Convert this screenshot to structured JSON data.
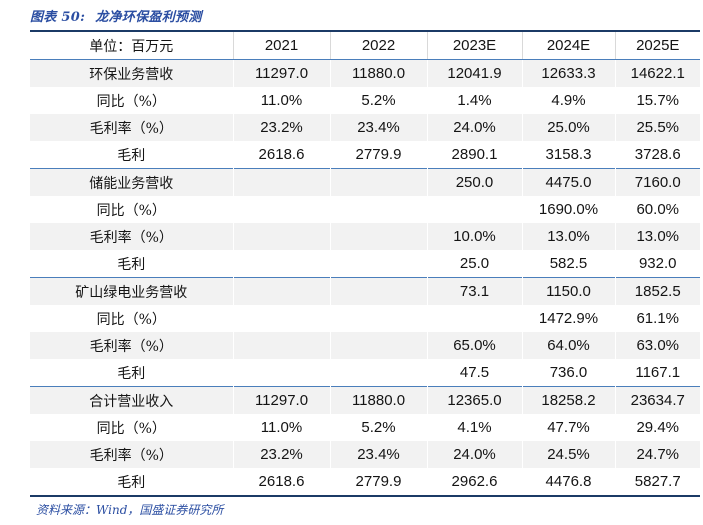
{
  "title": {
    "figure_label": "图表 50:",
    "figure_name": "龙净环保盈利预测"
  },
  "colors": {
    "accent_blue": "#2B4EA2",
    "border_dark_navy": "#1B3A66",
    "border_blue": "#4A7EBB",
    "row_shade": "#F2F2F2",
    "header_divider_gray": "#D9D9D9"
  },
  "table": {
    "unit_label": "单位：百万元",
    "columns": [
      "2021",
      "2022",
      "2023E",
      "2024E",
      "2025E"
    ],
    "rows": [
      {
        "label": "环保业务营收",
        "values": [
          "11297.0",
          "11880.0",
          "12041.9",
          "12633.3",
          "14622.1"
        ],
        "shaded": true,
        "section_start": false
      },
      {
        "label": "同比（%）",
        "values": [
          "11.0%",
          "5.2%",
          "1.4%",
          "4.9%",
          "15.7%"
        ],
        "shaded": false,
        "section_start": false
      },
      {
        "label": "毛利率（%）",
        "values": [
          "23.2%",
          "23.4%",
          "24.0%",
          "25.0%",
          "25.5%"
        ],
        "shaded": true,
        "section_start": false
      },
      {
        "label": "毛利",
        "values": [
          "2618.6",
          "2779.9",
          "2890.1",
          "3158.3",
          "3728.6"
        ],
        "shaded": false,
        "section_start": false
      },
      {
        "label": "储能业务营收",
        "values": [
          "",
          "",
          "250.0",
          "4475.0",
          "7160.0"
        ],
        "shaded": true,
        "section_start": true
      },
      {
        "label": "同比（%）",
        "values": [
          "",
          "",
          "",
          "1690.0%",
          "60.0%"
        ],
        "shaded": false,
        "section_start": false
      },
      {
        "label": "毛利率（%）",
        "values": [
          "",
          "",
          "10.0%",
          "13.0%",
          "13.0%"
        ],
        "shaded": true,
        "section_start": false
      },
      {
        "label": "毛利",
        "values": [
          "",
          "",
          "25.0",
          "582.5",
          "932.0"
        ],
        "shaded": false,
        "section_start": false
      },
      {
        "label": "矿山绿电业务营收",
        "values": [
          "",
          "",
          "73.1",
          "1150.0",
          "1852.5"
        ],
        "shaded": true,
        "section_start": true
      },
      {
        "label": "同比（%）",
        "values": [
          "",
          "",
          "",
          "1472.9%",
          "61.1%"
        ],
        "shaded": false,
        "section_start": false
      },
      {
        "label": "毛利率（%）",
        "values": [
          "",
          "",
          "65.0%",
          "64.0%",
          "63.0%"
        ],
        "shaded": true,
        "section_start": false
      },
      {
        "label": "毛利",
        "values": [
          "",
          "",
          "47.5",
          "736.0",
          "1167.1"
        ],
        "shaded": false,
        "section_start": false
      },
      {
        "label": "合计营业收入",
        "values": [
          "11297.0",
          "11880.0",
          "12365.0",
          "18258.2",
          "23634.7"
        ],
        "shaded": true,
        "section_start": true
      },
      {
        "label": "同比（%）",
        "values": [
          "11.0%",
          "5.2%",
          "4.1%",
          "47.7%",
          "29.4%"
        ],
        "shaded": false,
        "section_start": false
      },
      {
        "label": "毛利率（%）",
        "values": [
          "23.2%",
          "23.4%",
          "24.0%",
          "24.5%",
          "24.7%"
        ],
        "shaded": true,
        "section_start": false
      },
      {
        "label": "毛利",
        "values": [
          "2618.6",
          "2779.9",
          "2962.6",
          "4476.8",
          "5827.7"
        ],
        "shaded": false,
        "section_start": false
      }
    ]
  },
  "source_note": "资料来源：Wind，国盛证券研究所",
  "chart_data": {
    "type": "table",
    "title": "龙净环保盈利预测",
    "unit": "百万元",
    "categories": [
      "2021",
      "2022",
      "2023E",
      "2024E",
      "2025E"
    ],
    "series": [
      {
        "name": "环保业务营收",
        "values": [
          11297.0,
          11880.0,
          12041.9,
          12633.3,
          14622.1
        ]
      },
      {
        "name": "环保业务营收同比(%)",
        "values": [
          11.0,
          5.2,
          1.4,
          4.9,
          15.7
        ]
      },
      {
        "name": "环保业务毛利率(%)",
        "values": [
          23.2,
          23.4,
          24.0,
          25.0,
          25.5
        ]
      },
      {
        "name": "环保业务毛利",
        "values": [
          2618.6,
          2779.9,
          2890.1,
          3158.3,
          3728.6
        ]
      },
      {
        "name": "储能业务营收",
        "values": [
          null,
          null,
          250.0,
          4475.0,
          7160.0
        ]
      },
      {
        "name": "储能业务营收同比(%)",
        "values": [
          null,
          null,
          null,
          1690.0,
          60.0
        ]
      },
      {
        "name": "储能业务毛利率(%)",
        "values": [
          null,
          null,
          10.0,
          13.0,
          13.0
        ]
      },
      {
        "name": "储能业务毛利",
        "values": [
          null,
          null,
          25.0,
          582.5,
          932.0
        ]
      },
      {
        "name": "矿山绿电业务营收",
        "values": [
          null,
          null,
          73.1,
          1150.0,
          1852.5
        ]
      },
      {
        "name": "矿山绿电业务同比(%)",
        "values": [
          null,
          null,
          null,
          1472.9,
          61.1
        ]
      },
      {
        "name": "矿山绿电业务毛利率(%)",
        "values": [
          null,
          null,
          65.0,
          64.0,
          63.0
        ]
      },
      {
        "name": "矿山绿电业务毛利",
        "values": [
          null,
          null,
          47.5,
          736.0,
          1167.1
        ]
      },
      {
        "name": "合计营业收入",
        "values": [
          11297.0,
          11880.0,
          12365.0,
          18258.2,
          23634.7
        ]
      },
      {
        "name": "合计同比(%)",
        "values": [
          11.0,
          5.2,
          4.1,
          47.7,
          29.4
        ]
      },
      {
        "name": "合计毛利率(%)",
        "values": [
          23.2,
          23.4,
          24.0,
          24.5,
          24.7
        ]
      },
      {
        "name": "合计毛利",
        "values": [
          2618.6,
          2779.9,
          2962.6,
          4476.8,
          5827.7
        ]
      }
    ]
  }
}
